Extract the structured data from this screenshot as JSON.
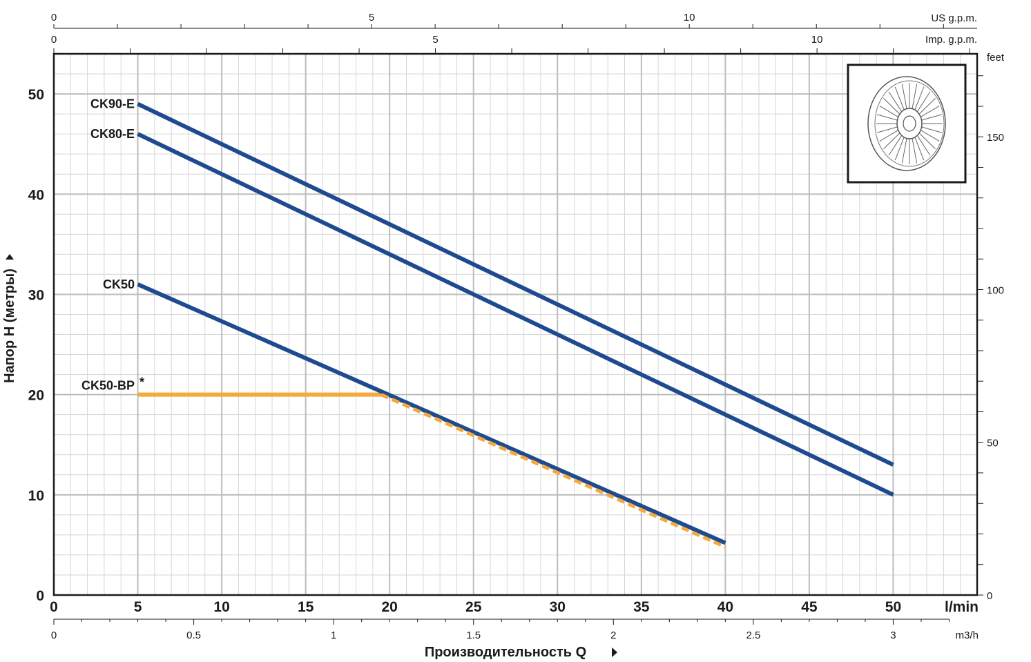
{
  "chart_data": {
    "type": "line",
    "xlabel": "Производительность Q",
    "ylabel": "Напор H (метры)",
    "x_unit": "l/min",
    "x_ticks": [
      0,
      5,
      10,
      15,
      20,
      25,
      30,
      35,
      40,
      45,
      50
    ],
    "xlim": [
      0,
      55
    ],
    "ylim": [
      0,
      50
    ],
    "y_ticks": [
      0,
      10,
      20,
      30,
      40,
      50
    ],
    "grid": true,
    "secondary_axes": {
      "m3h": {
        "unit": "m3/h",
        "ticks": [
          0,
          0.5,
          1,
          1.5,
          2,
          2.5,
          3
        ],
        "tick_labels": [
          "0",
          "0.5",
          "1",
          "1.5",
          "2",
          "2.5",
          "3"
        ]
      },
      "us_gpm": {
        "unit": "US g.p.m.",
        "ticks": [
          0,
          5,
          10
        ]
      },
      "imp_gpm": {
        "unit": "Imp. g.p.m.",
        "ticks": [
          0,
          5,
          10
        ]
      },
      "feet": {
        "unit": "feet",
        "ticks": [
          0,
          50,
          100,
          150
        ]
      }
    },
    "series": [
      {
        "name": "CK90-E",
        "style": "solid",
        "color": "#1e4b8f",
        "points": [
          [
            5,
            49
          ],
          [
            50,
            13
          ]
        ]
      },
      {
        "name": "CK80-E",
        "style": "solid",
        "color": "#1e4b8f",
        "points": [
          [
            5,
            46
          ],
          [
            50,
            10
          ]
        ]
      },
      {
        "name": "CK50",
        "style": "solid",
        "color": "#1e4b8f",
        "points": [
          [
            5,
            31
          ],
          [
            40,
            5.2
          ]
        ]
      },
      {
        "name": "CK50-BP",
        "style": "solid-then-dashed",
        "color": "#f4a93a",
        "points": [
          [
            5,
            20
          ],
          [
            19.5,
            20
          ],
          [
            40,
            4.8
          ]
        ]
      }
    ],
    "footnote_marker": "*",
    "colors": {
      "blue": "#1e4b8f",
      "orange": "#f4a93a",
      "grid_major": "#bdbdbd",
      "grid_minor": "#d6d6d6"
    }
  }
}
